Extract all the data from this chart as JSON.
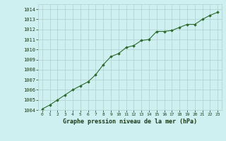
{
  "x": [
    0,
    1,
    2,
    3,
    4,
    5,
    6,
    7,
    8,
    9,
    10,
    11,
    12,
    13,
    14,
    15,
    16,
    17,
    18,
    19,
    20,
    21,
    22,
    23
  ],
  "y": [
    1004.1,
    1004.5,
    1005.0,
    1005.5,
    1006.0,
    1006.4,
    1006.8,
    1007.5,
    1008.5,
    1009.3,
    1009.6,
    1010.2,
    1010.4,
    1010.9,
    1011.0,
    1011.8,
    1011.8,
    1011.9,
    1012.2,
    1012.5,
    1012.5,
    1013.0,
    1013.4,
    1013.7
  ],
  "line_color": "#2d6a2d",
  "marker": "D",
  "marker_size": 1.8,
  "line_width": 0.8,
  "bg_color": "#cff0f0",
  "grid_color": "#b0cece",
  "title": "Graphe pression niveau de la mer (hPa)",
  "title_fontsize": 6.0,
  "title_color": "#1a3a1a",
  "ylim": [
    1004.0,
    1014.5
  ],
  "yticks": [
    1004,
    1005,
    1006,
    1007,
    1008,
    1009,
    1010,
    1011,
    1012,
    1013,
    1014
  ],
  "xtick_labels": [
    "0",
    "1",
    "2",
    "3",
    "4",
    "5",
    "6",
    "7",
    "8",
    "9",
    "10",
    "11",
    "12",
    "13",
    "14",
    "15",
    "16",
    "17",
    "18",
    "19",
    "20",
    "21",
    "22",
    "23"
  ],
  "ytick_fontsize": 5.0,
  "xtick_fontsize": 4.5,
  "tick_color": "#1a3a1a"
}
